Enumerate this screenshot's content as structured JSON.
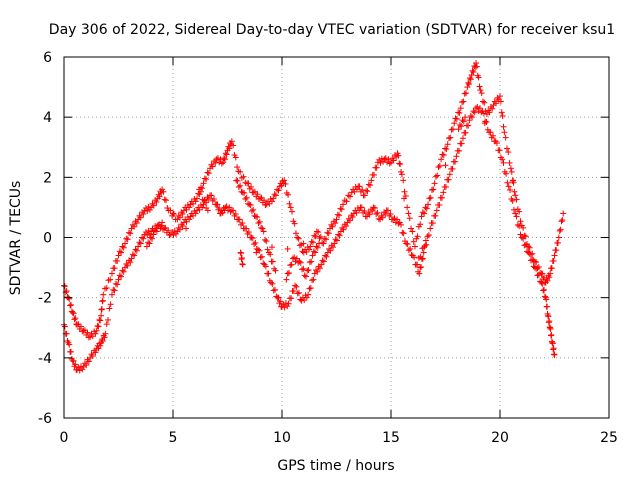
{
  "chart_data": {
    "type": "scatter",
    "title": "Day 306 of 2022, Sidereal Day-to-day VTEC variation (SDTVAR) for receiver ksu1",
    "xlabel": "GPS time / hours",
    "ylabel": "SDTVAR / TECUs",
    "xlim": [
      0,
      25
    ],
    "ylim": [
      -6,
      6
    ],
    "xticks": [
      0,
      5,
      10,
      15,
      20,
      25
    ],
    "yticks": [
      -6,
      -4,
      -2,
      0,
      2,
      4,
      6
    ],
    "x_tick_labels": [
      "0",
      "5",
      "10",
      "15",
      "20",
      "25"
    ],
    "y_tick_labels": [
      "-6",
      "-4",
      "-2",
      "0",
      "2",
      "4",
      "6"
    ],
    "grid": true,
    "marker": "+",
    "series": [
      {
        "name": "track-upper",
        "color": "#ff0000",
        "points": [
          [
            0.0,
            -1.6
          ],
          [
            0.2,
            -2.0
          ],
          [
            0.4,
            -2.5
          ],
          [
            0.6,
            -2.9
          ],
          [
            0.9,
            -3.1
          ],
          [
            1.2,
            -3.3
          ],
          [
            1.5,
            -3.1
          ],
          [
            1.7,
            -2.6
          ],
          [
            1.8,
            -1.9
          ],
          [
            2.2,
            -1.2
          ],
          [
            2.5,
            -0.6
          ],
          [
            2.8,
            -0.2
          ],
          [
            3.1,
            0.3
          ],
          [
            3.4,
            0.6
          ],
          [
            3.7,
            0.9
          ],
          [
            4.0,
            1.0
          ],
          [
            4.3,
            1.3
          ],
          [
            4.5,
            1.6
          ],
          [
            4.8,
            0.9
          ],
          [
            5.2,
            0.6
          ],
          [
            5.5,
            0.9
          ],
          [
            5.8,
            1.1
          ],
          [
            6.1,
            1.3
          ],
          [
            6.4,
            1.8
          ],
          [
            6.7,
            2.3
          ],
          [
            7.0,
            2.6
          ],
          [
            7.3,
            2.5
          ],
          [
            7.5,
            2.9
          ],
          [
            7.7,
            3.2
          ],
          [
            8.0,
            2.2
          ],
          [
            8.4,
            1.8
          ],
          [
            8.7,
            1.5
          ],
          [
            9.0,
            1.3
          ],
          [
            9.3,
            1.1
          ],
          [
            9.6,
            1.3
          ],
          [
            9.9,
            1.7
          ],
          [
            10.1,
            1.9
          ],
          [
            10.4,
            1.0
          ],
          [
            10.7,
            0.0
          ],
          [
            11.0,
            -0.5
          ],
          [
            11.3,
            -0.3
          ],
          [
            11.6,
            0.2
          ],
          [
            11.9,
            -0.2
          ],
          [
            12.2,
            0.3
          ],
          [
            12.5,
            0.6
          ],
          [
            12.8,
            1.1
          ],
          [
            13.2,
            1.5
          ],
          [
            13.5,
            1.7
          ],
          [
            13.8,
            1.4
          ],
          [
            14.1,
            1.9
          ],
          [
            14.4,
            2.5
          ],
          [
            14.7,
            2.6
          ],
          [
            15.0,
            2.5
          ],
          [
            15.3,
            2.8
          ],
          [
            15.5,
            2.1
          ],
          [
            15.8,
            0.8
          ],
          [
            16.1,
            -0.3
          ],
          [
            16.4,
            0.7
          ],
          [
            16.7,
            1.1
          ],
          [
            17.0,
            1.8
          ],
          [
            17.3,
            2.6
          ],
          [
            17.6,
            3.1
          ],
          [
            17.9,
            3.8
          ],
          [
            18.2,
            4.3
          ],
          [
            18.5,
            5.0
          ],
          [
            18.7,
            5.4
          ],
          [
            18.9,
            5.8
          ],
          [
            19.1,
            4.9
          ],
          [
            19.4,
            4.1
          ],
          [
            19.7,
            4.4
          ],
          [
            20.0,
            4.7
          ],
          [
            20.2,
            3.5
          ],
          [
            20.5,
            2.3
          ],
          [
            20.7,
            1.4
          ],
          [
            21.0,
            0.4
          ],
          [
            21.3,
            -0.3
          ],
          [
            21.6,
            -0.8
          ],
          [
            21.9,
            -1.2
          ],
          [
            22.1,
            -1.5
          ],
          [
            22.3,
            -1.2
          ],
          [
            22.5,
            -0.6
          ],
          [
            22.7,
            0.0
          ],
          [
            22.9,
            0.8
          ]
        ]
      },
      {
        "name": "track-lower",
        "color": "#ff0000",
        "points": [
          [
            0.0,
            -2.9
          ],
          [
            0.2,
            -3.5
          ],
          [
            0.4,
            -4.1
          ],
          [
            0.6,
            -4.4
          ],
          [
            0.9,
            -4.3
          ],
          [
            1.2,
            -4.0
          ],
          [
            1.5,
            -3.7
          ],
          [
            1.7,
            -3.5
          ],
          [
            1.9,
            -3.2
          ],
          [
            2.2,
            -1.9
          ],
          [
            2.5,
            -1.4
          ],
          [
            2.8,
            -1.0
          ],
          [
            3.1,
            -0.7
          ],
          [
            3.4,
            -0.3
          ],
          [
            3.7,
            0.1
          ],
          [
            4.0,
            0.2
          ],
          [
            4.3,
            0.4
          ],
          [
            4.6,
            0.3
          ],
          [
            4.9,
            0.1
          ],
          [
            5.2,
            0.2
          ],
          [
            5.5,
            0.5
          ],
          [
            5.8,
            0.7
          ],
          [
            6.1,
            0.9
          ],
          [
            6.4,
            1.1
          ],
          [
            6.7,
            1.4
          ],
          [
            7.0,
            1.1
          ],
          [
            7.2,
            0.8
          ],
          [
            7.4,
            1.0
          ],
          [
            7.7,
            0.9
          ],
          [
            8.0,
            0.6
          ],
          [
            8.3,
            0.3
          ],
          [
            8.6,
            0.0
          ],
          [
            8.9,
            -0.4
          ],
          [
            9.2,
            -0.9
          ],
          [
            9.5,
            -1.5
          ],
          [
            9.8,
            -2.0
          ],
          [
            10.0,
            -2.3
          ],
          [
            10.3,
            -2.2
          ],
          [
            10.6,
            -1.6
          ],
          [
            10.9,
            -2.1
          ],
          [
            11.2,
            -1.9
          ],
          [
            11.5,
            -1.2
          ],
          [
            11.8,
            -0.9
          ],
          [
            12.1,
            -0.5
          ],
          [
            12.4,
            -0.2
          ],
          [
            12.7,
            0.2
          ],
          [
            13.0,
            0.5
          ],
          [
            13.3,
            0.8
          ],
          [
            13.6,
            1.0
          ],
          [
            13.9,
            0.7
          ],
          [
            14.2,
            1.0
          ],
          [
            14.5,
            0.6
          ],
          [
            14.8,
            0.9
          ],
          [
            15.1,
            0.6
          ],
          [
            15.4,
            0.5
          ],
          [
            15.7,
            -0.2
          ],
          [
            16.0,
            -0.6
          ],
          [
            16.3,
            -1.2
          ],
          [
            16.5,
            -0.5
          ],
          [
            16.8,
            0.3
          ],
          [
            17.1,
            0.9
          ],
          [
            17.4,
            1.5
          ],
          [
            17.7,
            2.1
          ],
          [
            18.0,
            2.7
          ],
          [
            18.3,
            3.3
          ],
          [
            18.6,
            3.9
          ],
          [
            18.9,
            4.3
          ],
          [
            19.2,
            4.2
          ],
          [
            19.5,
            3.5
          ],
          [
            19.8,
            3.2
          ],
          [
            20.1,
            2.6
          ],
          [
            20.4,
            1.7
          ],
          [
            20.7,
            0.8
          ],
          [
            21.0,
            0.0
          ],
          [
            21.3,
            -0.5
          ],
          [
            21.6,
            -1.0
          ],
          [
            21.9,
            -1.5
          ],
          [
            22.1,
            -2.0
          ],
          [
            22.2,
            -2.6
          ],
          [
            22.3,
            -3.0
          ],
          [
            22.4,
            -3.5
          ],
          [
            22.5,
            -3.9
          ]
        ]
      },
      {
        "name": "track-extra",
        "color": "#ff0000",
        "points": [
          [
            3.8,
            -0.3
          ],
          [
            4.1,
            0.1
          ],
          [
            4.5,
            0.5
          ],
          [
            5.0,
            0.8
          ],
          [
            5.6,
            0.3
          ],
          [
            6.2,
            1.6
          ],
          [
            6.6,
            0.9
          ],
          [
            7.9,
            1.9
          ],
          [
            8.2,
            1.5
          ],
          [
            8.5,
            1.1
          ],
          [
            8.8,
            0.7
          ],
          [
            9.1,
            0.3
          ],
          [
            9.4,
            -0.5
          ],
          [
            9.7,
            -1.1
          ],
          [
            10.2,
            -1.4
          ],
          [
            10.5,
            -0.7
          ],
          [
            10.8,
            -0.8
          ],
          [
            11.1,
            -1.3
          ],
          [
            11.4,
            -0.6
          ],
          [
            11.7,
            -0.2
          ],
          [
            8.1,
            -0.5
          ],
          [
            8.2,
            -0.9
          ],
          [
            15.6,
            1.3
          ],
          [
            16.2,
            -0.9
          ],
          [
            16.6,
            -0.1
          ],
          [
            17.5,
            2.4
          ],
          [
            18.1,
            3.6
          ],
          [
            18.4,
            4.0
          ],
          [
            19.3,
            3.8
          ],
          [
            20.6,
            1.9
          ]
        ]
      }
    ]
  }
}
